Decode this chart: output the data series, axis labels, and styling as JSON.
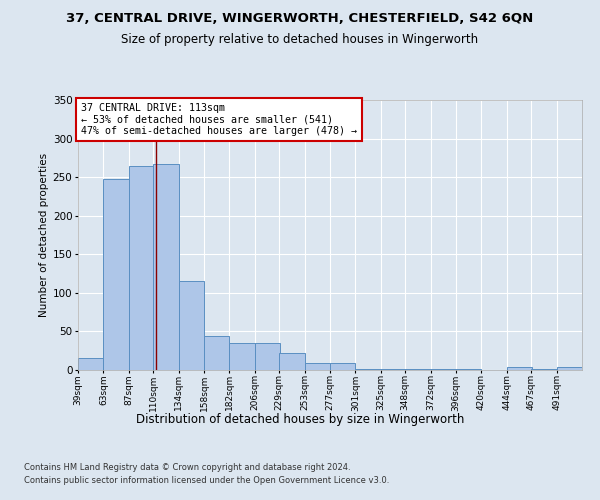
{
  "title1": "37, CENTRAL DRIVE, WINGERWORTH, CHESTERFIELD, S42 6QN",
  "title2": "Size of property relative to detached houses in Wingerworth",
  "xlabel": "Distribution of detached houses by size in Wingerworth",
  "ylabel": "Number of detached properties",
  "footnote1": "Contains HM Land Registry data © Crown copyright and database right 2024.",
  "footnote2": "Contains public sector information licensed under the Open Government Licence v3.0.",
  "annotation_line1": "37 CENTRAL DRIVE: 113sqm",
  "annotation_line2": "← 53% of detached houses are smaller (541)",
  "annotation_line3": "47% of semi-detached houses are larger (478) →",
  "property_size": 113,
  "bin_edges": [
    39,
    63,
    87,
    110,
    134,
    158,
    182,
    206,
    229,
    253,
    277,
    301,
    325,
    348,
    372,
    396,
    420,
    444,
    467,
    491,
    515
  ],
  "bar_heights": [
    15,
    248,
    264,
    267,
    115,
    44,
    35,
    35,
    22,
    9,
    9,
    1,
    1,
    1,
    1,
    1,
    0,
    4,
    1,
    4
  ],
  "bar_color": "#aec6e8",
  "bar_edge_color": "#5a8fc2",
  "vline_color": "#8b0000",
  "vline_x": 113,
  "ylim": [
    0,
    350
  ],
  "yticks": [
    0,
    50,
    100,
    150,
    200,
    250,
    300,
    350
  ],
  "background_color": "#dce6f0",
  "plot_bg_color": "#dce6f0",
  "annotation_box_color": "#ffffff",
  "annotation_box_edge": "#cc0000",
  "grid_color": "#ffffff"
}
